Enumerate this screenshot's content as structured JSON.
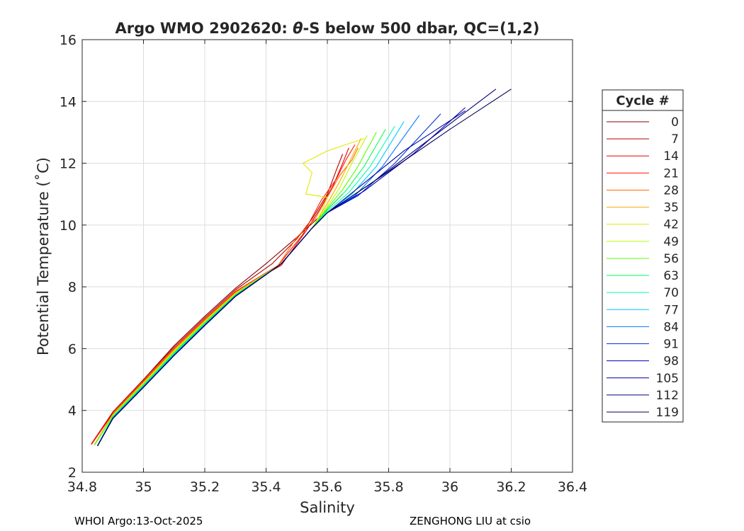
{
  "figure": {
    "title_prefix": "Argo WMO 2902620: ",
    "title_theta": "θ",
    "title_suffix": "-S below 500 dbar,  QC=(1,2)",
    "footer_left": "WHOI Argo:13-Oct-2025",
    "footer_right": "ZENGHONG LIU at csio"
  },
  "chart_data": {
    "type": "line",
    "xlabel": "Salinity",
    "ylabel": "Potential Temperature (˚C)",
    "xlim": [
      34.8,
      36.4
    ],
    "ylim": [
      2,
      16
    ],
    "xticks": [
      34.8,
      35,
      35.2,
      35.4,
      35.6,
      35.8,
      36,
      36.2,
      36.4
    ],
    "xtick_labels": [
      "34.8",
      "35",
      "35.2",
      "35.4",
      "35.6",
      "35.8",
      "36",
      "36.2",
      "36.4"
    ],
    "yticks": [
      2,
      4,
      6,
      8,
      10,
      12,
      14,
      16
    ],
    "ytick_labels": [
      "2",
      "4",
      "6",
      "8",
      "10",
      "12",
      "14",
      "16"
    ],
    "grid": true,
    "legend": {
      "title": "Cycle #",
      "placement": "outside-right"
    },
    "series": [
      {
        "name": "0",
        "color": "#800000",
        "x": [
          34.83,
          34.9,
          35.0,
          35.1,
          35.2,
          35.3,
          35.4,
          35.5,
          35.6,
          35.65
        ],
        "y": [
          2.9,
          3.95,
          5.0,
          6.1,
          7.05,
          7.95,
          8.75,
          9.6,
          10.5,
          11.0
        ]
      },
      {
        "name": "7",
        "color": "#b30000",
        "x": [
          34.83,
          34.9,
          35.0,
          35.1,
          35.2,
          35.3,
          35.42,
          35.5,
          35.55,
          35.6,
          35.63,
          35.65
        ],
        "y": [
          2.92,
          3.95,
          5.0,
          6.05,
          7.0,
          7.9,
          8.75,
          9.55,
          10.2,
          11.0,
          11.8,
          12.3
        ]
      },
      {
        "name": "14",
        "color": "#e60000",
        "x": [
          34.83,
          34.9,
          35.0,
          35.1,
          35.2,
          35.3,
          35.45,
          35.53,
          35.58,
          35.62,
          35.65,
          35.67
        ],
        "y": [
          2.9,
          3.9,
          4.95,
          6.0,
          6.95,
          7.85,
          8.7,
          9.8,
          10.6,
          11.3,
          12.0,
          12.5
        ]
      },
      {
        "name": "21",
        "color": "#ff1a00",
        "x": [
          34.83,
          34.9,
          35.0,
          35.1,
          35.2,
          35.3,
          35.44,
          35.52,
          35.58,
          35.63,
          35.66,
          35.69
        ],
        "y": [
          2.9,
          3.9,
          4.95,
          6.0,
          6.95,
          7.85,
          8.7,
          9.7,
          10.8,
          11.5,
          12.1,
          12.6
        ]
      },
      {
        "name": "28",
        "color": "#ff6600",
        "x": [
          34.84,
          34.9,
          35.0,
          35.1,
          35.2,
          35.3,
          35.44,
          35.5,
          35.56,
          35.6,
          35.64,
          35.68,
          35.7
        ],
        "y": [
          2.9,
          3.88,
          4.92,
          5.98,
          6.92,
          7.82,
          8.7,
          9.6,
          10.2,
          10.9,
          11.6,
          12.1,
          12.5
        ]
      },
      {
        "name": "35",
        "color": "#ffaa00",
        "x": [
          34.84,
          34.9,
          35.0,
          35.1,
          35.2,
          35.3,
          35.45,
          35.55,
          35.6,
          35.64,
          35.68,
          35.71
        ],
        "y": [
          2.9,
          3.86,
          4.9,
          5.95,
          6.9,
          7.8,
          8.75,
          9.9,
          10.7,
          11.4,
          12.2,
          12.8
        ]
      },
      {
        "name": "42",
        "color": "#e6e600",
        "x": [
          34.84,
          34.9,
          35.0,
          35.1,
          35.2,
          35.3,
          35.45,
          35.55,
          35.58,
          35.6,
          35.53,
          35.55,
          35.52,
          35.6,
          35.72
        ],
        "y": [
          2.88,
          3.85,
          4.88,
          5.93,
          6.88,
          7.78,
          8.75,
          9.9,
          10.4,
          10.9,
          11.0,
          11.7,
          12.0,
          12.4,
          12.8
        ]
      },
      {
        "name": "49",
        "color": "#b3ff00",
        "x": [
          34.84,
          34.9,
          35.0,
          35.1,
          35.2,
          35.3,
          35.45,
          35.55,
          35.6,
          35.64,
          35.68,
          35.73
        ],
        "y": [
          2.88,
          3.84,
          4.86,
          5.9,
          6.86,
          7.76,
          8.75,
          9.9,
          10.6,
          11.2,
          12.0,
          12.9
        ]
      },
      {
        "name": "56",
        "color": "#55ff00",
        "x": [
          34.84,
          34.9,
          35.0,
          35.1,
          35.2,
          35.3,
          35.45,
          35.55,
          35.6,
          35.65,
          35.7,
          35.76
        ],
        "y": [
          2.87,
          3.82,
          4.84,
          5.88,
          6.84,
          7.75,
          8.75,
          9.9,
          10.55,
          11.15,
          11.9,
          13.0
        ]
      },
      {
        "name": "63",
        "color": "#00ff55",
        "x": [
          34.85,
          34.9,
          35.0,
          35.1,
          35.2,
          35.3,
          35.45,
          35.55,
          35.6,
          35.66,
          35.72,
          35.79
        ],
        "y": [
          2.87,
          3.8,
          4.82,
          5.86,
          6.82,
          7.74,
          8.75,
          9.9,
          10.5,
          11.1,
          11.9,
          13.1
        ]
      },
      {
        "name": "70",
        "color": "#00ffb3",
        "x": [
          34.85,
          34.9,
          35.0,
          35.1,
          35.2,
          35.3,
          35.45,
          35.55,
          35.6,
          35.67,
          35.74,
          35.82
        ],
        "y": [
          2.86,
          3.78,
          4.8,
          5.84,
          6.8,
          7.72,
          8.75,
          9.9,
          10.45,
          11.05,
          11.9,
          13.2
        ]
      },
      {
        "name": "77",
        "color": "#00ccff",
        "x": [
          34.85,
          34.9,
          35.0,
          35.1,
          35.2,
          35.3,
          35.45,
          35.55,
          35.6,
          35.68,
          35.76,
          35.85
        ],
        "y": [
          2.86,
          3.77,
          4.78,
          5.82,
          6.78,
          7.71,
          8.75,
          9.9,
          10.4,
          11.0,
          11.9,
          13.35
        ]
      },
      {
        "name": "84",
        "color": "#0077ff",
        "x": [
          34.85,
          34.9,
          35.0,
          35.1,
          35.2,
          35.3,
          35.45,
          35.55,
          35.6,
          35.69,
          35.78,
          35.9
        ],
        "y": [
          2.85,
          3.76,
          4.77,
          5.8,
          6.77,
          7.7,
          8.75,
          9.9,
          10.4,
          10.95,
          11.9,
          13.55
        ]
      },
      {
        "name": "91",
        "color": "#0033dd",
        "x": [
          34.85,
          34.9,
          35.0,
          35.1,
          35.2,
          35.3,
          35.45,
          35.55,
          35.6,
          35.7,
          35.82,
          35.97
        ],
        "y": [
          2.85,
          3.75,
          4.76,
          5.79,
          6.76,
          7.7,
          8.75,
          9.9,
          10.4,
          10.95,
          12.0,
          13.6
        ]
      },
      {
        "name": "98",
        "color": "#0000bb",
        "x": [
          34.85,
          34.9,
          35.0,
          35.1,
          35.2,
          35.3,
          35.45,
          35.55,
          35.6,
          35.72,
          35.88,
          36.05
        ],
        "y": [
          2.85,
          3.74,
          4.75,
          5.78,
          6.75,
          7.69,
          8.75,
          9.9,
          10.4,
          11.1,
          12.3,
          13.8
        ]
      },
      {
        "name": "105",
        "color": "#000099",
        "x": [
          34.85,
          34.9,
          35.0,
          35.1,
          35.2,
          35.3,
          35.45,
          35.55,
          35.6,
          35.7,
          35.85,
          36.05
        ],
        "y": [
          2.85,
          3.74,
          4.75,
          5.78,
          6.75,
          7.69,
          8.75,
          9.9,
          10.4,
          11.2,
          12.4,
          13.7
        ]
      },
      {
        "name": "112",
        "color": "#000077",
        "x": [
          34.85,
          34.9,
          35.0,
          35.1,
          35.2,
          35.3,
          35.45,
          35.55,
          35.6,
          35.75,
          35.95,
          36.15
        ],
        "y": [
          2.85,
          3.74,
          4.75,
          5.78,
          6.75,
          7.69,
          8.75,
          9.9,
          10.4,
          11.4,
          12.9,
          14.4
        ]
      },
      {
        "name": "119",
        "color": "#000055",
        "x": [
          34.85,
          34.9,
          35.0,
          35.1,
          35.2,
          35.3,
          35.45,
          35.55,
          35.6,
          35.78,
          36.0,
          36.2
        ],
        "y": [
          2.85,
          3.74,
          4.75,
          5.78,
          6.75,
          7.69,
          8.75,
          9.9,
          10.4,
          11.6,
          13.1,
          14.4
        ]
      }
    ]
  }
}
